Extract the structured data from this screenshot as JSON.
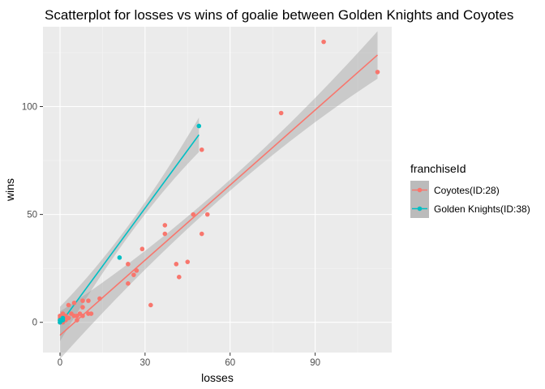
{
  "chart_data": {
    "type": "scatter",
    "title": "Scatterplot for losses vs wins of goalie between Golden Knights and Coyotes",
    "xlabel": "losses",
    "ylabel": "wins",
    "xlim": [
      -6,
      117
    ],
    "ylim": [
      -14,
      137
    ],
    "xticks": [
      0,
      30,
      60,
      90
    ],
    "yticks": [
      0,
      50,
      100
    ],
    "xticklabels": [
      "0",
      "30",
      "60",
      "90"
    ],
    "yticklabels": [
      "0",
      "50",
      "100"
    ],
    "grid": true,
    "legend": {
      "title": "franchiseId",
      "position": "right"
    },
    "series": [
      {
        "name": "Coyotes(ID:28)",
        "color": "#F8766D",
        "points": [
          [
            0,
            0
          ],
          [
            0,
            1
          ],
          [
            0,
            2
          ],
          [
            0,
            3
          ],
          [
            1,
            0
          ],
          [
            1,
            1
          ],
          [
            1,
            2
          ],
          [
            1,
            4
          ],
          [
            2,
            1
          ],
          [
            2,
            3
          ],
          [
            3,
            2
          ],
          [
            3,
            8
          ],
          [
            4,
            4
          ],
          [
            5,
            3
          ],
          [
            5,
            9
          ],
          [
            6,
            1
          ],
          [
            6,
            3
          ],
          [
            7,
            4
          ],
          [
            8,
            3
          ],
          [
            8,
            7
          ],
          [
            8,
            10
          ],
          [
            10,
            4
          ],
          [
            10,
            10
          ],
          [
            11,
            4
          ],
          [
            14,
            11
          ],
          [
            24,
            18
          ],
          [
            24,
            27
          ],
          [
            26,
            22
          ],
          [
            27,
            24
          ],
          [
            29,
            34
          ],
          [
            32,
            8
          ],
          [
            37,
            41
          ],
          [
            37,
            45
          ],
          [
            41,
            27
          ],
          [
            42,
            21
          ],
          [
            45,
            28
          ],
          [
            47,
            50
          ],
          [
            50,
            41
          ],
          [
            50,
            80
          ],
          [
            52,
            50
          ],
          [
            78,
            97
          ],
          [
            93,
            130
          ],
          [
            112,
            116
          ]
        ],
        "fit": {
          "x_range": [
            0,
            112
          ],
          "intercept": -6.0,
          "slope": 1.16,
          "band": {
            "min": 2.5,
            "max": 11.0
          }
        }
      },
      {
        "name": "Golden Knights(ID:38)",
        "color": "#00BFC4",
        "points": [
          [
            0,
            0
          ],
          [
            0,
            1
          ],
          [
            1,
            1
          ],
          [
            1,
            2
          ],
          [
            21,
            30
          ],
          [
            49,
            91
          ]
        ],
        "fit": {
          "x_range": [
            0,
            49
          ],
          "intercept": -0.8,
          "slope": 1.79,
          "band": {
            "min": 2.5,
            "max": 8.0
          }
        }
      }
    ]
  }
}
